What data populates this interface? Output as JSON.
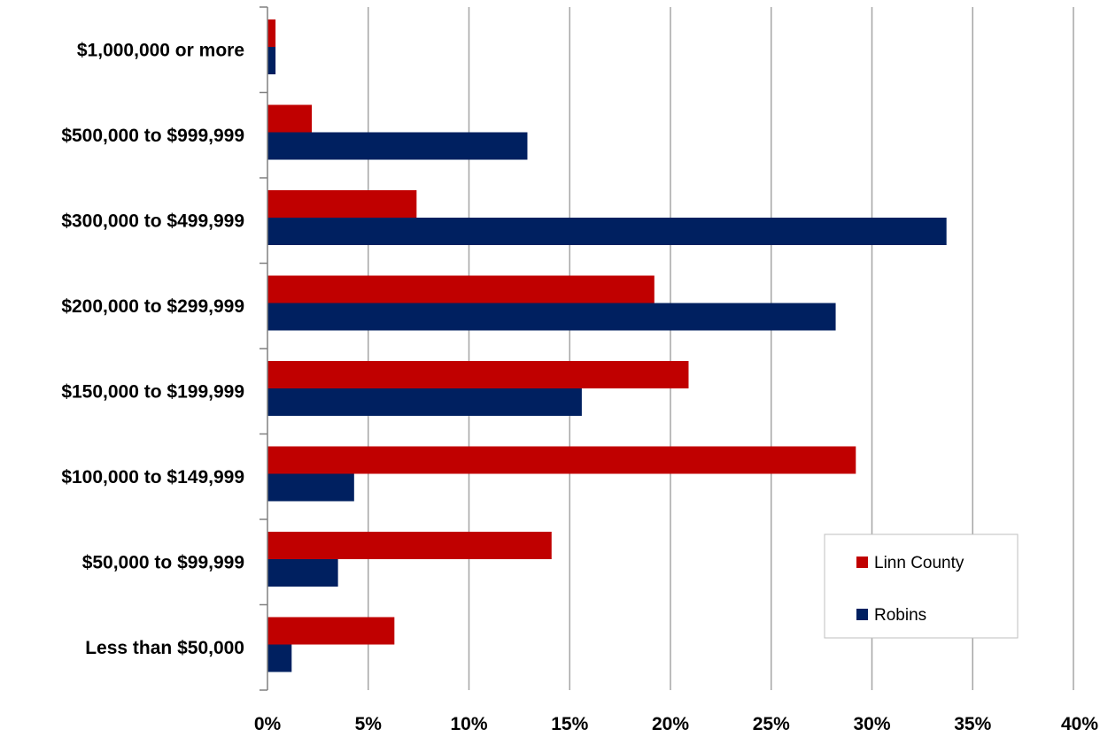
{
  "chart_data": {
    "type": "bar",
    "orientation": "horizontal",
    "categories": [
      "$1,000,000 or more",
      "$500,000 to $999,999",
      "$300,000 to $499,999",
      "$200,000 to $299,999",
      "$150,000 to $199,999",
      "$100,000 to $149,999",
      "$50,000 to $99,999",
      "Less than $50,000"
    ],
    "series": [
      {
        "name": "Linn County",
        "color": "#c00000",
        "values": [
          0.4,
          2.2,
          7.4,
          19.2,
          20.9,
          29.2,
          14.1,
          6.3
        ]
      },
      {
        "name": "Robins",
        "color": "#002060",
        "values": [
          0.4,
          12.9,
          33.7,
          28.2,
          15.6,
          4.3,
          3.5,
          1.2
        ]
      }
    ],
    "xlim": [
      0,
      40
    ],
    "x_ticks": [
      "0%",
      "5%",
      "10%",
      "15%",
      "20%",
      "25%",
      "30%",
      "35%",
      "40%"
    ],
    "x_tick_values": [
      0,
      5,
      10,
      15,
      20,
      25,
      30,
      35,
      40
    ],
    "grid": "vertical",
    "legend_position": "bottom-right",
    "title": "",
    "xlabel": "",
    "ylabel": ""
  }
}
